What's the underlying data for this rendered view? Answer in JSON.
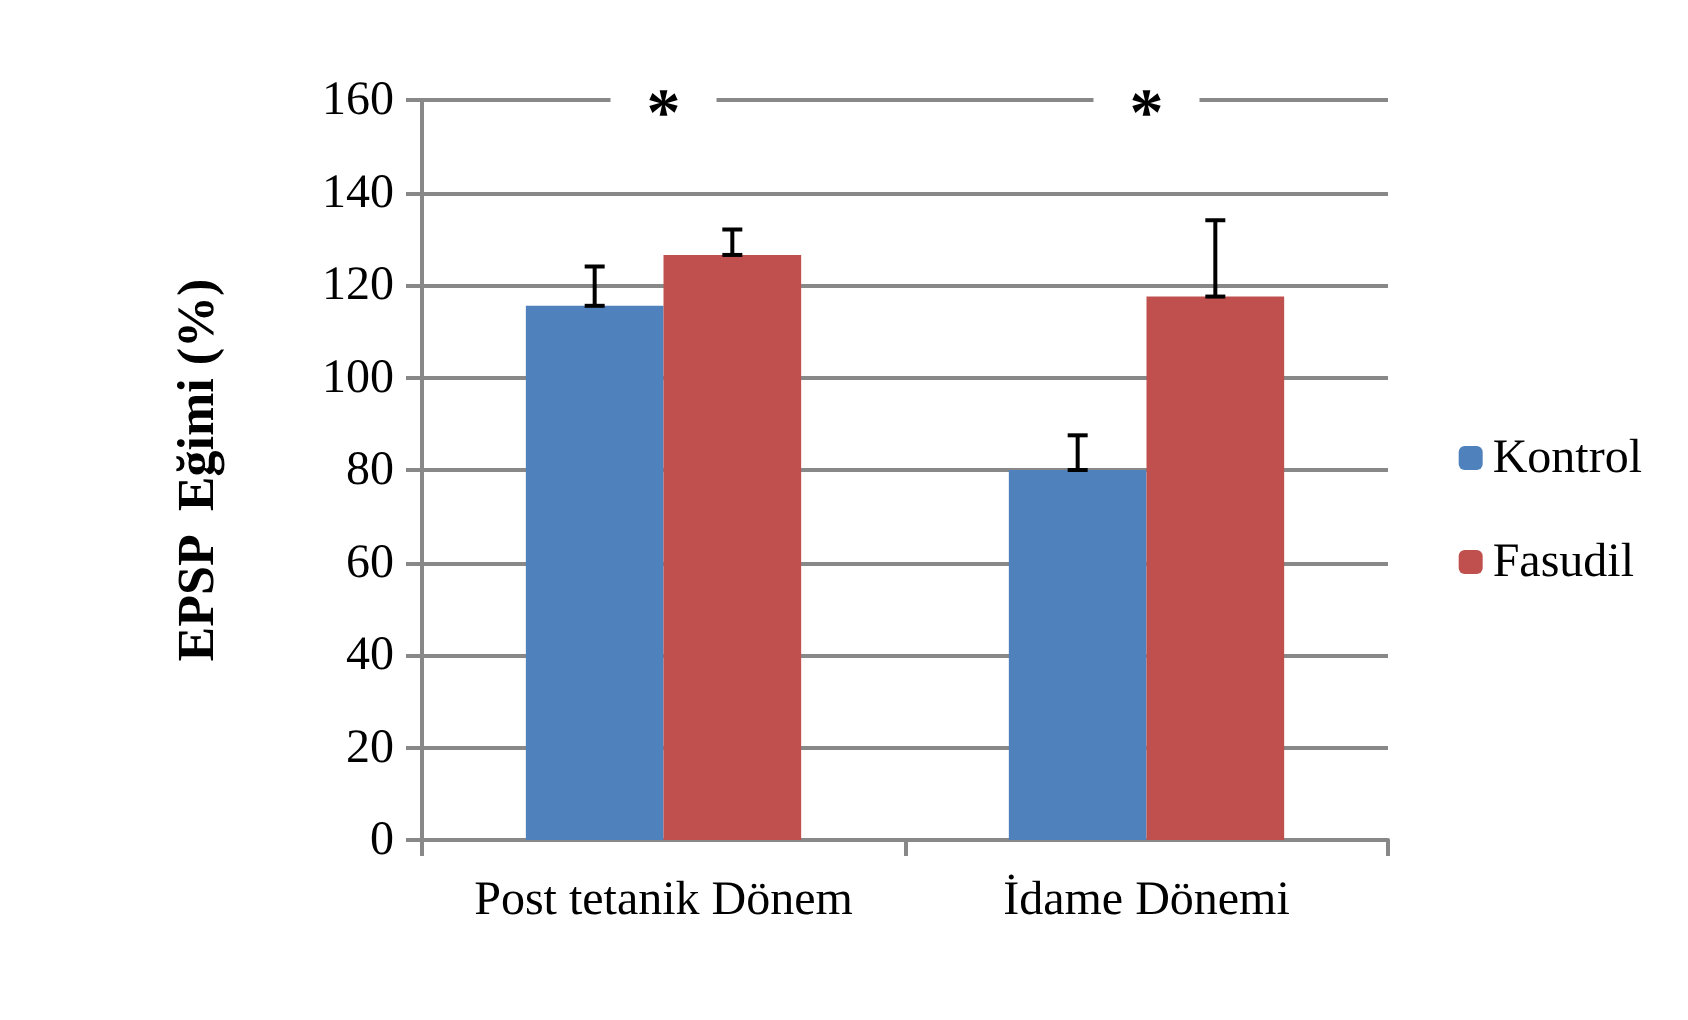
{
  "chart_data": {
    "type": "bar",
    "ylabel": "EPSP  Eğimi (%)",
    "categories": [
      "Post tetanik Dönem",
      "İdame Dönemi"
    ],
    "series": [
      {
        "name": "Kontrol",
        "color": "#4f81bd",
        "values": [
          115.5,
          80
        ],
        "errors": [
          [
            115.5,
            124
          ],
          [
            80,
            87.5
          ]
        ]
      },
      {
        "name": "Fasudil",
        "color": "#c0504d",
        "values": [
          126.5,
          117.5
        ],
        "errors": [
          [
            126.5,
            132
          ],
          [
            117.5,
            134
          ]
        ]
      }
    ],
    "ylim": [
      0,
      160
    ],
    "yticks": [
      0,
      20,
      40,
      60,
      80,
      100,
      120,
      140,
      160
    ],
    "grid": "y",
    "legend": "right",
    "annotations": [
      "*",
      "*"
    ]
  }
}
